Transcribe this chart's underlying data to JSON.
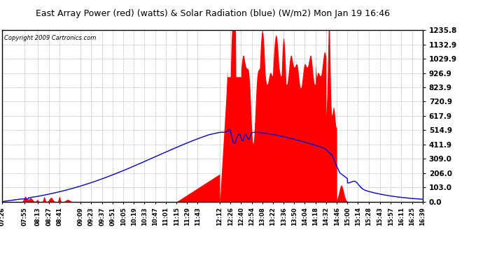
{
  "title": "East Array Power (red) (watts) & Solar Radiation (blue) (W/m2) Mon Jan 19 16:46",
  "copyright": "Copyright 2009 Cartronics.com",
  "bg_color": "#ffffff",
  "plot_bg_color": "#ffffff",
  "grid_color": "#aaaaaa",
  "red_color": "#ff0000",
  "blue_color": "#0000cc",
  "ymin": 0.0,
  "ymax": 1235.8,
  "yticks": [
    0.0,
    103.0,
    206.0,
    309.0,
    411.9,
    514.9,
    617.9,
    720.9,
    823.9,
    926.9,
    1029.9,
    1132.9,
    1235.8
  ],
  "xtick_labels": [
    "07:26",
    "07:55",
    "08:13",
    "08:27",
    "08:41",
    "09:09",
    "09:23",
    "09:37",
    "09:51",
    "10:05",
    "10:19",
    "10:33",
    "10:47",
    "11:01",
    "11:15",
    "11:29",
    "11:43",
    "12:12",
    "12:26",
    "12:40",
    "12:54",
    "13:08",
    "13:22",
    "13:36",
    "13:50",
    "14:04",
    "14:18",
    "14:32",
    "14:46",
    "15:00",
    "15:14",
    "15:28",
    "15:43",
    "15:57",
    "16:11",
    "16:25",
    "16:39"
  ]
}
